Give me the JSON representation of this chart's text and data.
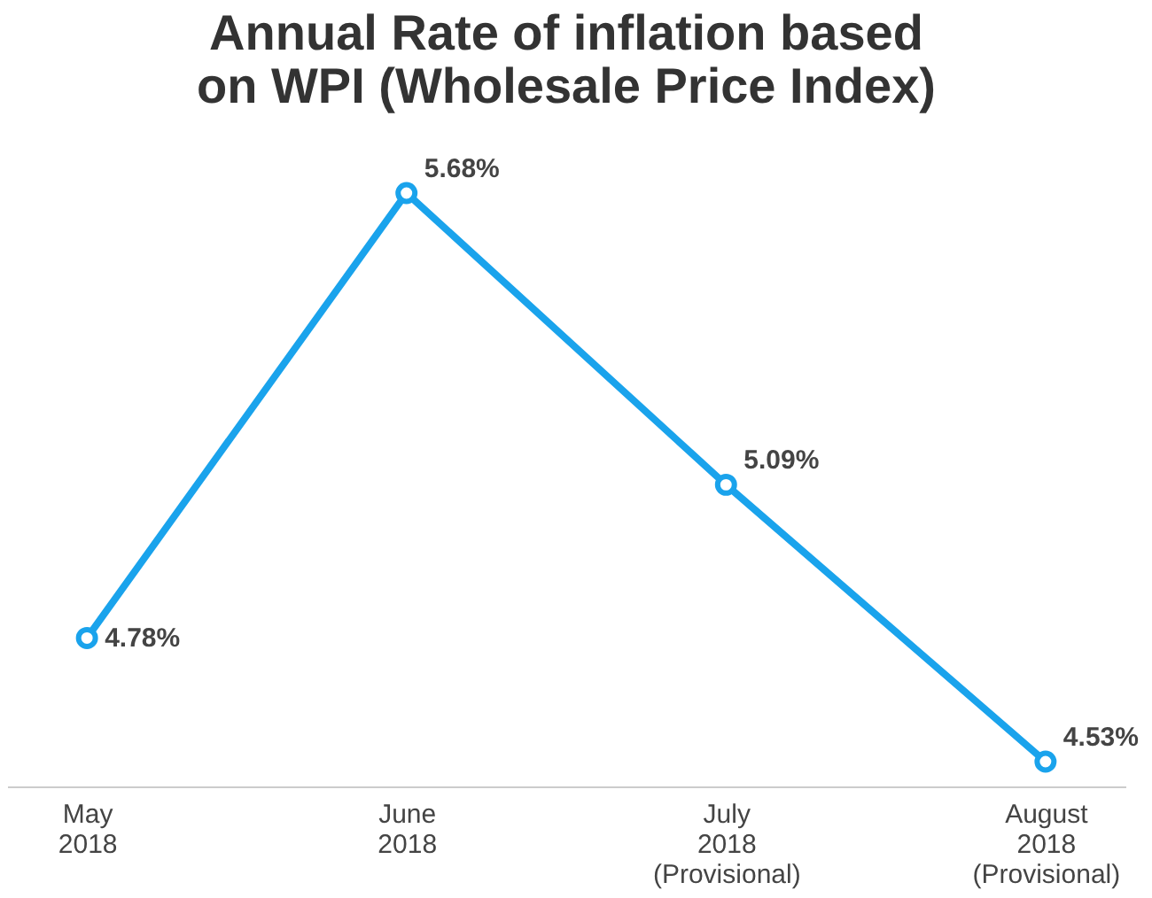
{
  "chart_data": {
    "type": "line",
    "title": "Annual Rate of inflation based on WPI (Wholesale Price Index)",
    "categories": [
      "May\n2018",
      "June\n2018",
      "July\n2018\n(Provisional)",
      "August\n2018\n(Provisional)"
    ],
    "series": [
      {
        "color": "#1aa3ec",
        "values": [
          4.78,
          5.68,
          5.09,
          4.53
        ],
        "value_labels": [
          "4.78%",
          "5.68%",
          "5.09%",
          "4.53%"
        ]
      }
    ],
    "marker": "circle",
    "line_style": "solid",
    "grid": false,
    "legend": false
  }
}
